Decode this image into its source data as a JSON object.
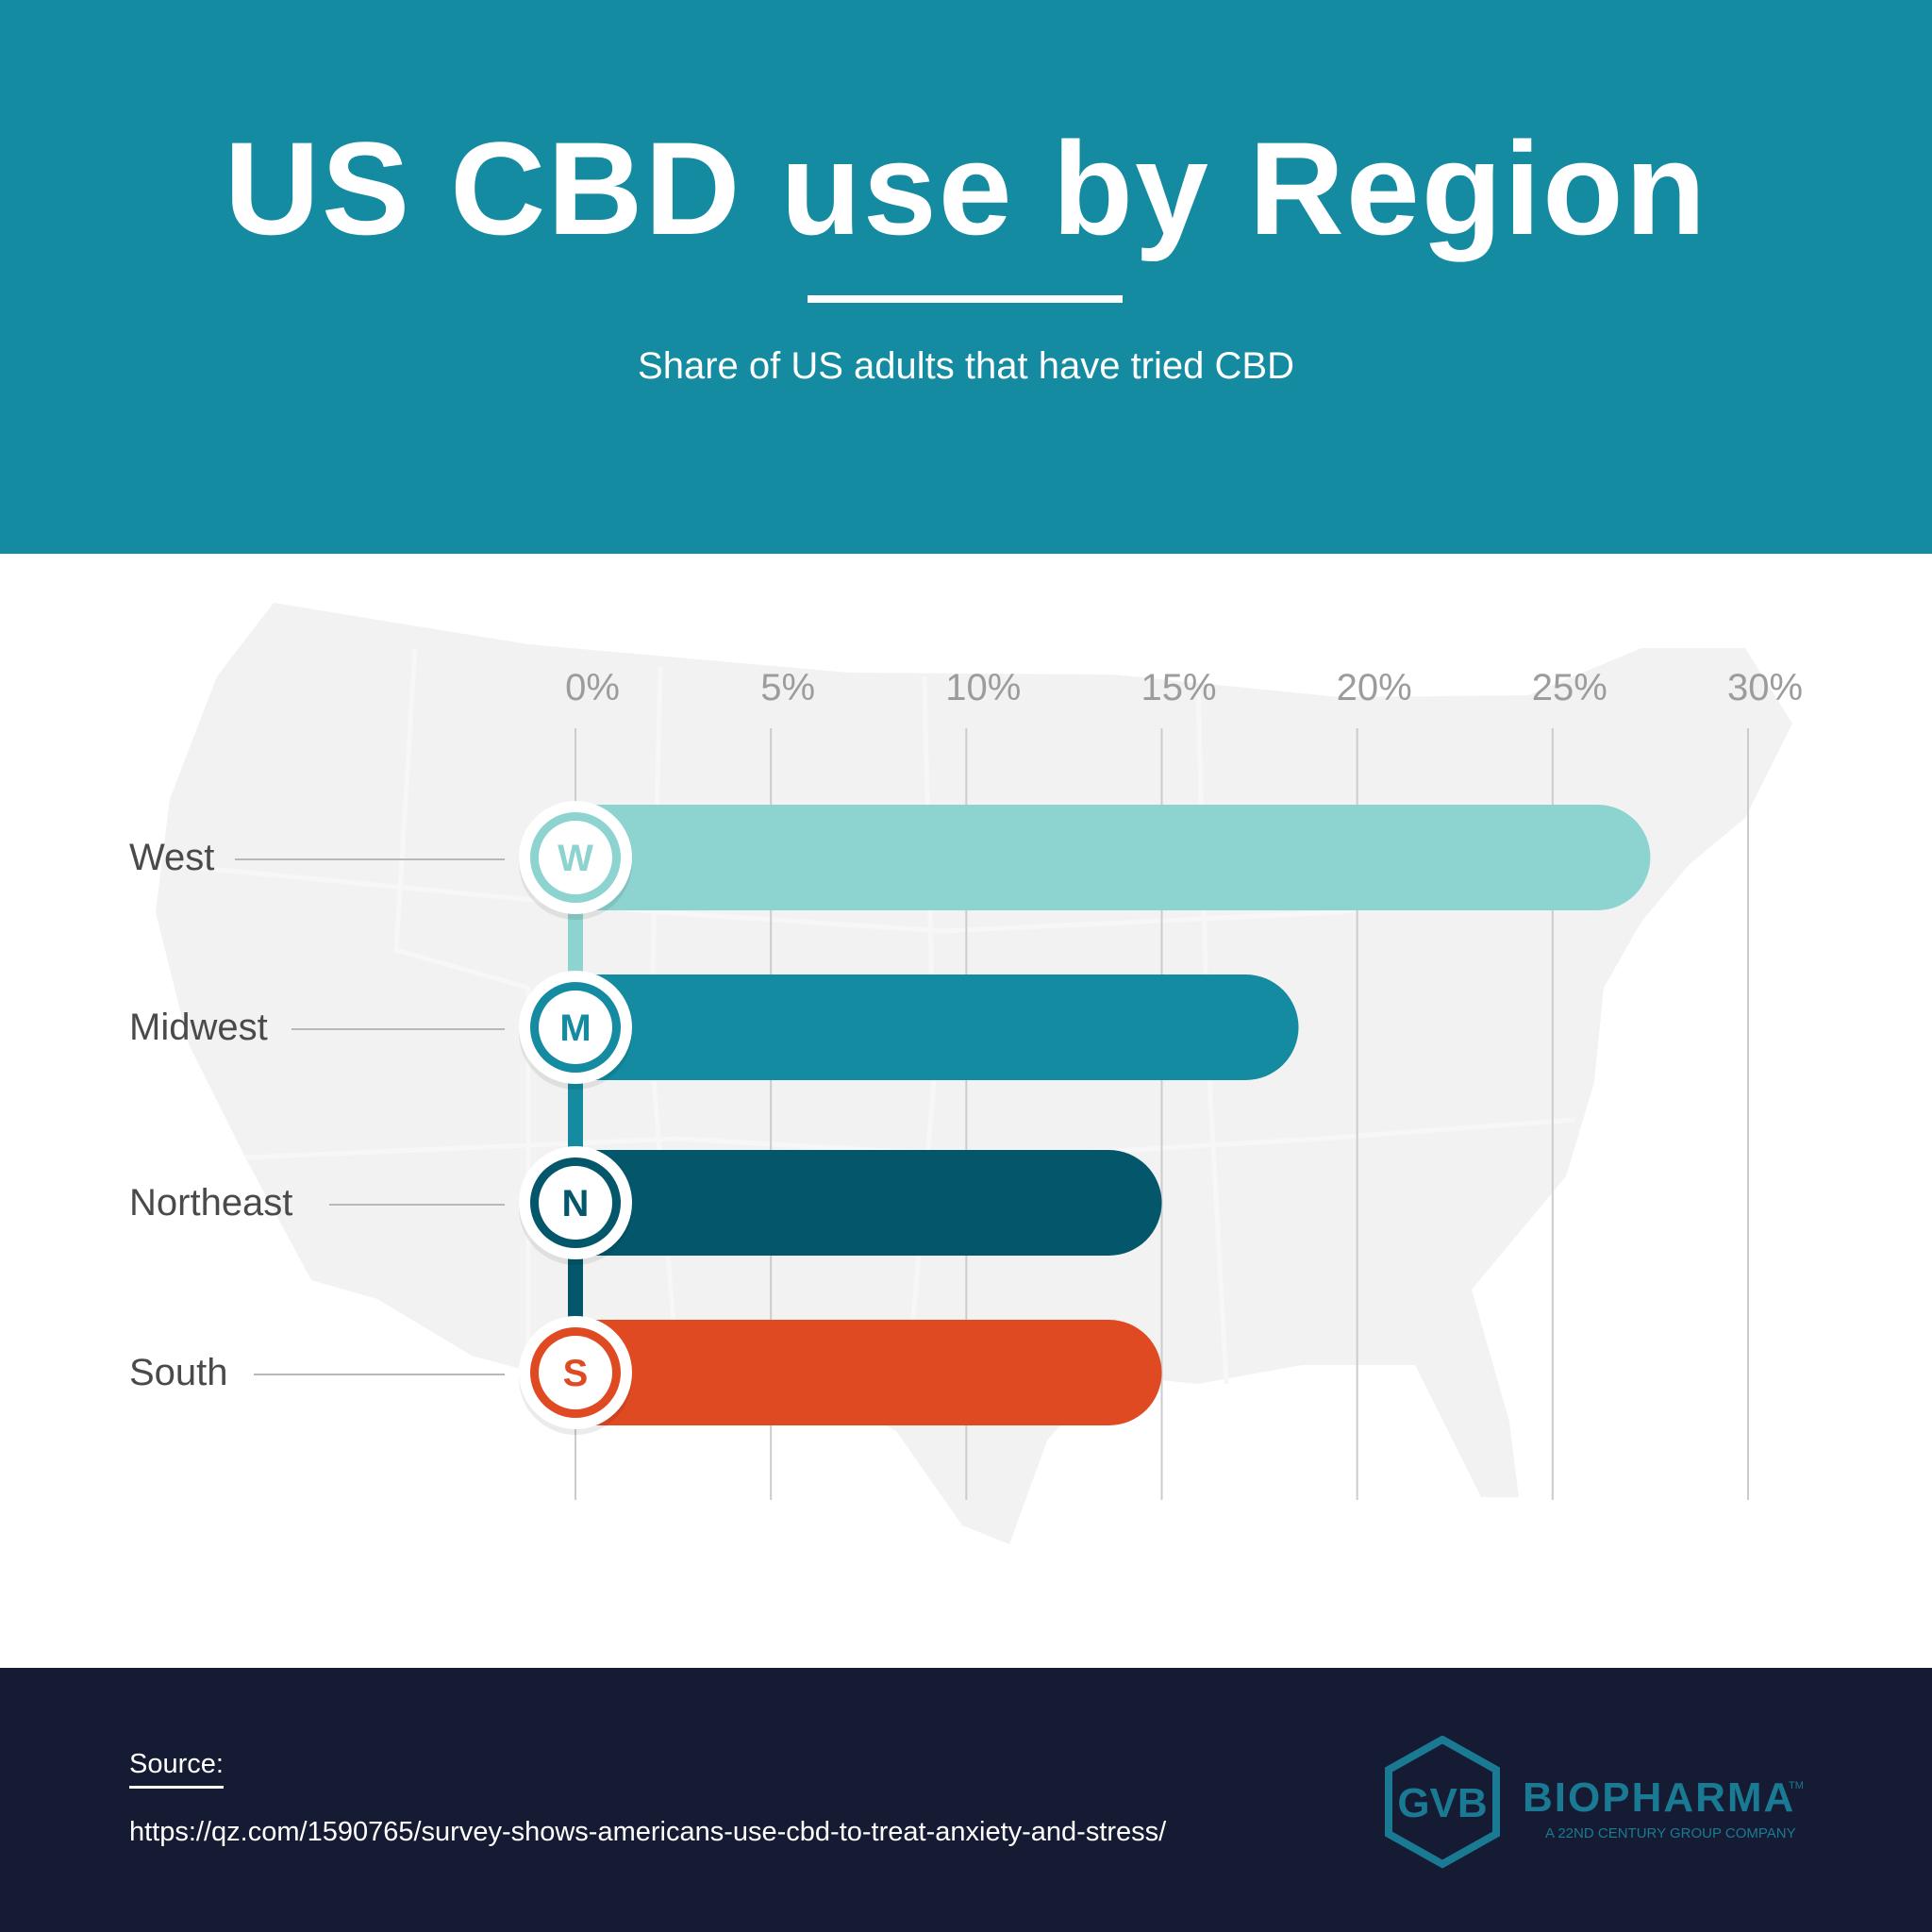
{
  "header": {
    "title": "US CBD use by Region",
    "subtitle": "Share of US adults that have tried CBD"
  },
  "chart_data": {
    "type": "bar",
    "orientation": "horizontal",
    "title": "US CBD use by Region",
    "subtitle": "Share of US adults that have tried CBD",
    "categories": [
      "West",
      "Midwest",
      "Northeast",
      "South"
    ],
    "badges": [
      "W",
      "M",
      "N",
      "S"
    ],
    "values": [
      27.5,
      18.5,
      15,
      15
    ],
    "colors": [
      "#8dd3cf",
      "#148ba1",
      "#04566b",
      "#e04a23"
    ],
    "x_ticks": [
      "0%",
      "5%",
      "10%",
      "15%",
      "20%",
      "25%",
      "30%"
    ],
    "xlim": [
      0,
      30
    ],
    "axis_position": "top",
    "grid": true
  },
  "footer": {
    "source_label": "Source:",
    "source_url": "https://qz.com/1590765/survey-shows-americans-use-cbd-to-treat-anxiety-and-stress/"
  },
  "logo": {
    "monogram": "GVB",
    "name": "BIOPHARMA",
    "trademark": "TM",
    "tagline": "A 22ND CENTURY GROUP COMPANY",
    "color": "#1a7a93"
  }
}
